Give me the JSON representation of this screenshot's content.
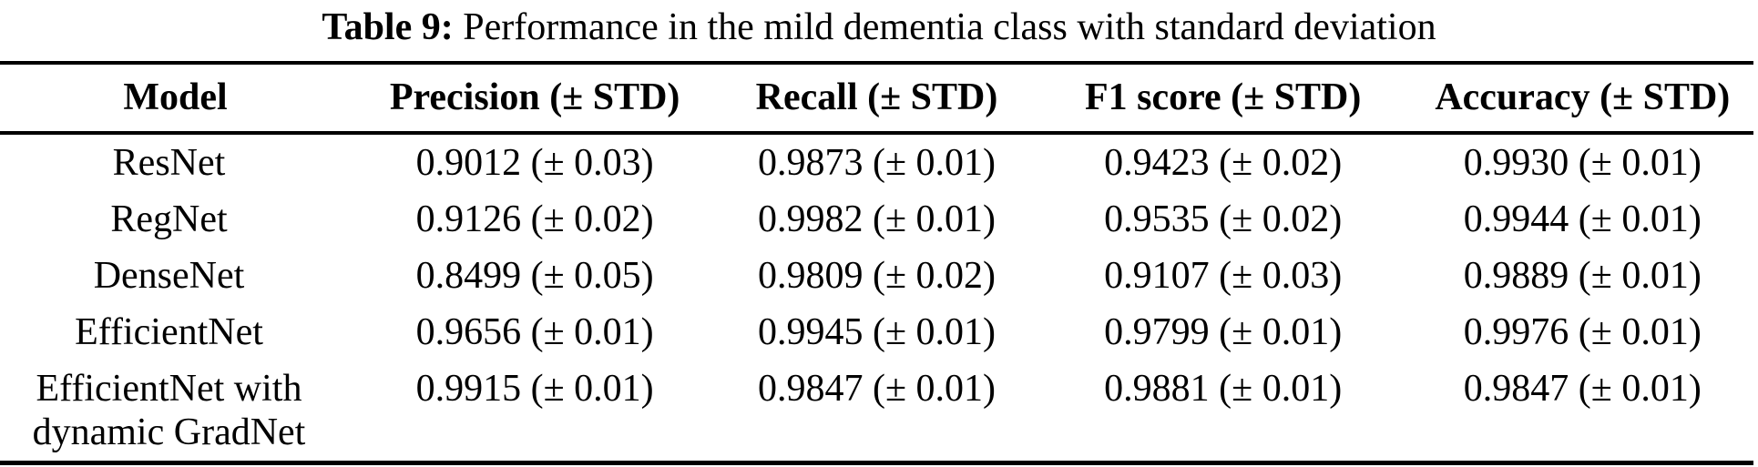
{
  "caption": {
    "label": "Table 9:",
    "text": "Performance in the mild dementia class with standard deviation"
  },
  "colors": {
    "text": "#000000",
    "background": "#ffffff",
    "rule": "#000000"
  },
  "chart_data": {
    "type": "table",
    "title": "Table 9: Performance in the mild dementia class with standard deviation",
    "columns": [
      "Model",
      "Precision (± STD)",
      "Recall (± STD)",
      "F1 score (± STD)",
      "Accuracy (± STD)"
    ],
    "rows": [
      [
        "ResNet",
        "0.9012 (± 0.03)",
        "0.9873 (± 0.01)",
        "0.9423 (± 0.02)",
        "0.9930 (± 0.01)"
      ],
      [
        "RegNet",
        "0.9126 (± 0.02)",
        "0.9982 (± 0.01)",
        "0.9535 (± 0.02)",
        "0.9944 (± 0.01)"
      ],
      [
        "DenseNet",
        "0.8499 (± 0.05)",
        "0.9809 (± 0.02)",
        "0.9107 (± 0.03)",
        "0.9889 (± 0.01)"
      ],
      [
        "EfficientNet",
        "0.9656 (± 0.01)",
        "0.9945 (± 0.01)",
        "0.9799 (± 0.01)",
        "0.9976 (± 0.01)"
      ],
      [
        "EfficientNet with dynamic GradNet",
        "0.9915 (± 0.01)",
        "0.9847 (± 0.01)",
        "0.9881 (± 0.01)",
        "0.9847 (± 0.01)"
      ]
    ]
  },
  "table": {
    "headers": {
      "model": "Model",
      "precision": "Precision (± STD)",
      "recall": "Recall (± STD)",
      "f1": "F1 score (± STD)",
      "accuracy": "Accuracy (± STD)"
    },
    "rows": [
      {
        "model": "ResNet",
        "precision": "0.9012 (± 0.03)",
        "recall": "0.9873 (± 0.01)",
        "f1": "0.9423 (± 0.02)",
        "accuracy": "0.9930 (± 0.01)"
      },
      {
        "model": "RegNet",
        "precision": "0.9126 (± 0.02)",
        "recall": "0.9982 (± 0.01)",
        "f1": "0.9535 (± 0.02)",
        "accuracy": "0.9944 (± 0.01)"
      },
      {
        "model": "DenseNet",
        "precision": "0.8499 (± 0.05)",
        "recall": "0.9809 (± 0.02)",
        "f1": "0.9107 (± 0.03)",
        "accuracy": "0.9889 (± 0.01)"
      },
      {
        "model": "EfficientNet",
        "precision": "0.9656 (± 0.01)",
        "recall": "0.9945 (± 0.01)",
        "f1": "0.9799 (± 0.01)",
        "accuracy": "0.9976 (± 0.01)"
      },
      {
        "model": "EfficientNet with dynamic GradNet",
        "precision": "0.9915 (± 0.01)",
        "recall": "0.9847 (± 0.01)",
        "f1": "0.9881 (± 0.01)",
        "accuracy": "0.9847 (± 0.01)"
      }
    ]
  }
}
